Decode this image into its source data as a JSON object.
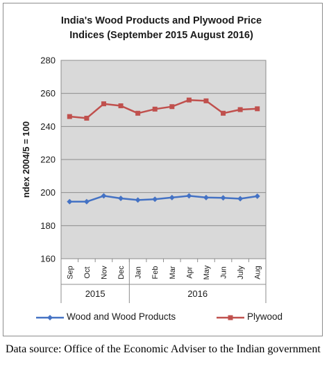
{
  "chart_data": {
    "type": "line",
    "title_lines": [
      "India's Wood Products and Plywood Price",
      "Indices (September 2015 August 2016)"
    ],
    "ylabel": "ndex 2004/5 = 100",
    "ylim": [
      160,
      280
    ],
    "yticks": [
      160,
      180,
      200,
      220,
      240,
      260,
      280
    ],
    "grid": "horizontal",
    "categories": [
      "Sep",
      "Oct",
      "Nov",
      "Dec",
      "Jan",
      "Feb",
      "Mar",
      "Apr",
      "May",
      "Jun",
      "July",
      "Aug"
    ],
    "year_groups": [
      {
        "label": "2015",
        "months": 4
      },
      {
        "label": "2016",
        "months": 8
      }
    ],
    "series": [
      {
        "name": "Wood and Wood Products",
        "color": "#4472c4",
        "marker": "diamond",
        "values": [
          194.5,
          194.5,
          198,
          196.5,
          195.5,
          196,
          197,
          198,
          197,
          196.8,
          196.3,
          197.8
        ]
      },
      {
        "name": "Plywood",
        "color": "#c0504d",
        "marker": "square",
        "values": [
          246,
          245,
          253.7,
          252.5,
          248,
          250.5,
          252,
          256,
          255.5,
          248,
          250.2,
          250.7
        ]
      }
    ],
    "legend_position": "bottom",
    "plot_background": "#d9d9d9"
  },
  "source_note": "Data source: Office of the Economic Adviser to the Indian government"
}
